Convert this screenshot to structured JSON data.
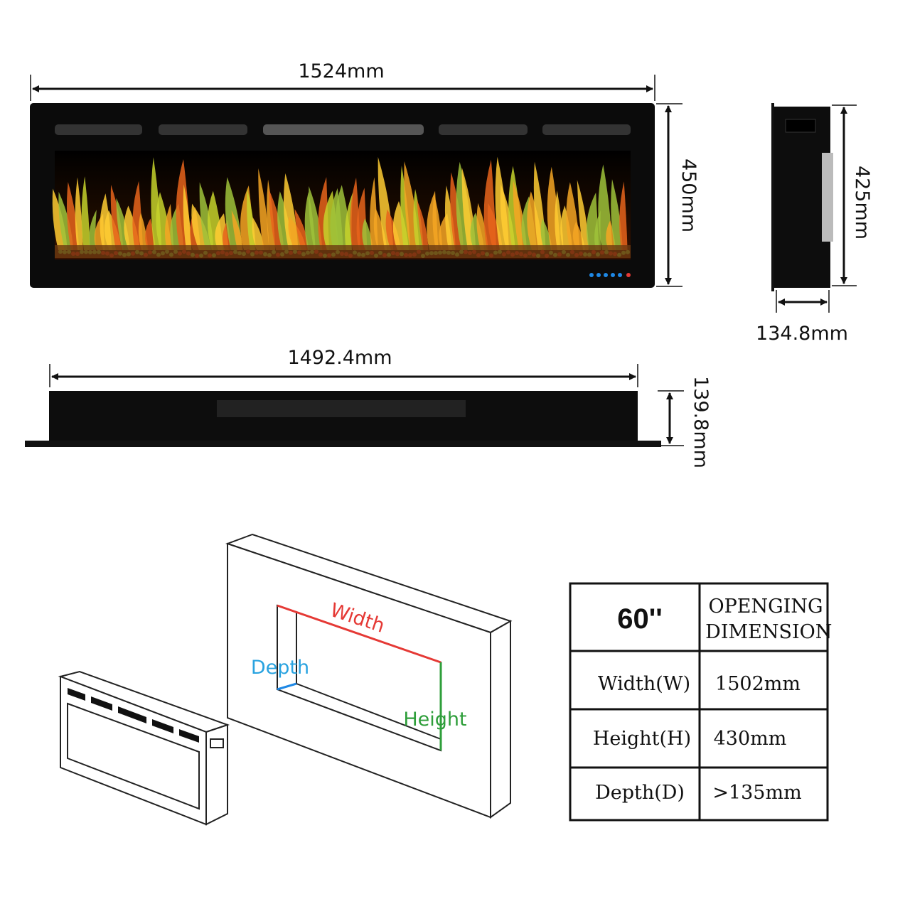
{
  "dimensions": {
    "front_width": "1524mm",
    "front_height": "450mm",
    "side_height": "425mm",
    "side_depth": "134.8mm",
    "bottom_width": "1492.4mm",
    "bottom_height": "139.8mm"
  },
  "wall_diagram": {
    "width": "Width",
    "depth": "Depth",
    "height": "Height"
  },
  "table": {
    "header": [
      "60''",
      "OPENGING DIMENSION"
    ],
    "rows": [
      [
        "Width(W)",
        "1502mm"
      ],
      [
        "Height(H)",
        "430mm"
      ],
      [
        "Depth(D)",
        ">135mm"
      ]
    ]
  }
}
